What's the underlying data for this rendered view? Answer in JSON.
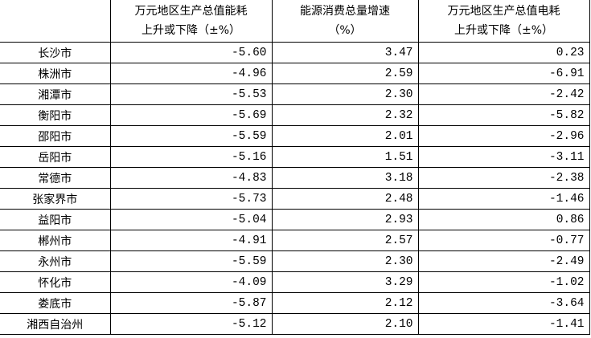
{
  "headers": {
    "col1_line1": "万元地区生产总值能耗",
    "col1_line2": "上升或下降（±%）",
    "col2_line1": "能源消费总量增速",
    "col2_line2": "（%）",
    "col3_line1": "万元地区生产总值电耗",
    "col3_line2": "上升或下降（±%）"
  },
  "rows": [
    {
      "name": "长沙市",
      "energy": "-5.60",
      "growth": "3.47",
      "power": "0.23"
    },
    {
      "name": "株洲市",
      "energy": "-4.96",
      "growth": "2.59",
      "power": "-6.91"
    },
    {
      "name": "湘潭市",
      "energy": "-5.53",
      "growth": "2.30",
      "power": "-2.42"
    },
    {
      "name": "衡阳市",
      "energy": "-5.69",
      "growth": "2.32",
      "power": "-5.82"
    },
    {
      "name": "邵阳市",
      "energy": "-5.59",
      "growth": "2.01",
      "power": "-2.96"
    },
    {
      "name": "岳阳市",
      "energy": "-5.16",
      "growth": "1.51",
      "power": "-3.11"
    },
    {
      "name": "常德市",
      "energy": "-4.83",
      "growth": "3.18",
      "power": "-2.38"
    },
    {
      "name": "张家界市",
      "energy": "-5.73",
      "growth": "2.48",
      "power": "-1.46"
    },
    {
      "name": "益阳市",
      "energy": "-5.04",
      "growth": "2.93",
      "power": "0.86"
    },
    {
      "name": "郴州市",
      "energy": "-4.91",
      "growth": "2.57",
      "power": "-0.77"
    },
    {
      "name": "永州市",
      "energy": "-5.59",
      "growth": "2.30",
      "power": "-2.49"
    },
    {
      "name": "怀化市",
      "energy": "-4.09",
      "growth": "3.29",
      "power": "-1.02"
    },
    {
      "name": "娄底市",
      "energy": "-5.87",
      "growth": "2.12",
      "power": "-3.64"
    },
    {
      "name": "湘西自治州",
      "energy": "-5.12",
      "growth": "2.10",
      "power": "-1.41"
    }
  ]
}
